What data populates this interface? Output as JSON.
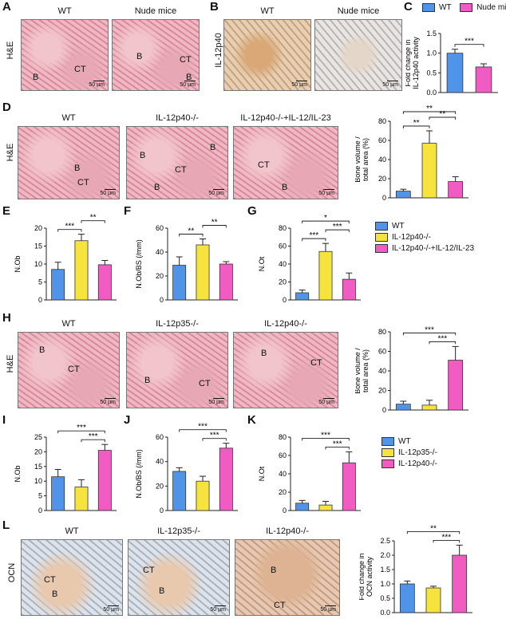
{
  "panels": {
    "A": {
      "label": "A",
      "side": "H&E",
      "titles": [
        "WT",
        "Nude mice"
      ],
      "tags": [
        [
          "B",
          "CT"
        ],
        [
          "B",
          "CT",
          "B"
        ]
      ],
      "scale": "50 µm"
    },
    "B": {
      "label": "B",
      "side": "IL-12p40",
      "titles": [
        "WT",
        "Nude mice"
      ],
      "scale": "50 µm"
    },
    "C": {
      "label": "C"
    },
    "D": {
      "label": "D",
      "side": "H&E",
      "titles": [
        "WT",
        "IL-12p40-/-",
        "IL-12p40-/-+IL-12/IL-23"
      ],
      "tags": [
        [
          "B",
          "CT"
        ],
        [
          "B",
          "B",
          "CT",
          "B"
        ],
        [
          "CT",
          "B"
        ]
      ],
      "scale": "50 µm"
    },
    "E": {
      "label": "E"
    },
    "F": {
      "label": "F"
    },
    "G": {
      "label": "G"
    },
    "H": {
      "label": "H",
      "side": "H&E",
      "titles": [
        "WT",
        "IL-12p35-/-",
        "IL-12p40-/-"
      ],
      "tags": [
        [
          "B",
          "CT"
        ],
        [
          "B",
          "CT"
        ],
        [
          "B",
          "CT"
        ]
      ],
      "scale": "50 µm"
    },
    "I": {
      "label": "I"
    },
    "J": {
      "label": "J"
    },
    "K": {
      "label": "K"
    },
    "L": {
      "label": "L",
      "side": "OCN",
      "titles": [
        "WT",
        "IL-12p35-/-",
        "IL-12p40-/-"
      ],
      "tags": [
        [
          "CT",
          "B"
        ],
        [
          "CT",
          "B"
        ],
        [
          "B",
          "CT"
        ]
      ],
      "scale": "50 µm"
    }
  },
  "legends": {
    "C": [
      {
        "name": "WT",
        "color": "#4f94e8"
      },
      {
        "name": "Nude mice",
        "color": "#f05cc2"
      }
    ],
    "D": [
      {
        "name": "WT",
        "color": "#4f94e8"
      },
      {
        "name": "IL-12p40-/-",
        "color": "#f6e33d"
      },
      {
        "name": "IL-12p40-/-+IL-12/IL-23",
        "color": "#f05cc2"
      }
    ],
    "H": [
      {
        "name": "WT",
        "color": "#4f94e8"
      },
      {
        "name": "IL-12p35-/-",
        "color": "#f6e33d"
      },
      {
        "name": "IL-12p40-/-",
        "color": "#f05cc2"
      }
    ]
  },
  "chart_data": [
    {
      "id": "C",
      "type": "bar",
      "ylabel": "Fold change in IL-12p40 activity",
      "ylim": [
        0,
        1.5
      ],
      "ticks": [
        0,
        0.5,
        1.0,
        1.5
      ],
      "tick_labels": [
        "0.0",
        "0.5",
        "1.0",
        "1.5"
      ],
      "values": [
        1.0,
        0.65
      ],
      "errors": [
        0.1,
        0.08
      ],
      "colors": [
        "#4f94e8",
        "#f05cc2"
      ],
      "sig": [
        {
          "a": 0,
          "b": 1,
          "label": "***"
        }
      ]
    },
    {
      "id": "D",
      "type": "bar",
      "ylabel": "Bone volume / total area (%)",
      "ylim": [
        0,
        80
      ],
      "ticks": [
        0,
        20,
        40,
        60,
        80
      ],
      "tick_labels": [
        "0",
        "20",
        "40",
        "60",
        "80"
      ],
      "values": [
        7,
        57,
        17
      ],
      "errors": [
        2,
        13,
        5
      ],
      "colors": [
        "#4f94e8",
        "#f6e33d",
        "#f05cc2"
      ],
      "sig": [
        {
          "a": 0,
          "b": 1,
          "label": "**"
        },
        {
          "a": 1,
          "b": 2,
          "label": "**"
        },
        {
          "a": 0,
          "b": 2,
          "label": "**"
        }
      ]
    },
    {
      "id": "E",
      "type": "bar",
      "ylabel": "N.Ob",
      "ylim": [
        0,
        20
      ],
      "ticks": [
        0,
        5,
        10,
        15,
        20
      ],
      "tick_labels": [
        "0",
        "5",
        "10",
        "15",
        "20"
      ],
      "values": [
        8.5,
        16.5,
        9.8
      ],
      "errors": [
        2.0,
        1.8,
        1.2
      ],
      "colors": [
        "#4f94e8",
        "#f6e33d",
        "#f05cc2"
      ],
      "sig": [
        {
          "a": 0,
          "b": 1,
          "label": "***"
        },
        {
          "a": 1,
          "b": 2,
          "label": "**"
        }
      ]
    },
    {
      "id": "F",
      "type": "bar",
      "ylabel": "N.Ob/BS (/mm)",
      "ylim": [
        0,
        60
      ],
      "ticks": [
        0,
        20,
        40,
        60
      ],
      "tick_labels": [
        "0",
        "20",
        "40",
        "60"
      ],
      "values": [
        29,
        46,
        30
      ],
      "errors": [
        7,
        5,
        2
      ],
      "colors": [
        "#4f94e8",
        "#f6e33d",
        "#f05cc2"
      ],
      "sig": [
        {
          "a": 0,
          "b": 1,
          "label": "**"
        },
        {
          "a": 1,
          "b": 2,
          "label": "**"
        }
      ]
    },
    {
      "id": "G",
      "type": "bar",
      "ylabel": "N.Ot",
      "ylim": [
        0,
        80
      ],
      "ticks": [
        0,
        20,
        40,
        60,
        80
      ],
      "tick_labels": [
        "0",
        "20",
        "40",
        "60",
        "80"
      ],
      "values": [
        8,
        54,
        23
      ],
      "errors": [
        3,
        9,
        7
      ],
      "colors": [
        "#4f94e8",
        "#f6e33d",
        "#f05cc2"
      ],
      "sig": [
        {
          "a": 0,
          "b": 1,
          "label": "***"
        },
        {
          "a": 1,
          "b": 2,
          "label": "***"
        },
        {
          "a": 0,
          "b": 2,
          "label": "*"
        }
      ]
    },
    {
      "id": "H",
      "type": "bar",
      "ylabel": "Bone volume / total area (%)",
      "ylim": [
        0,
        80
      ],
      "ticks": [
        0,
        20,
        40,
        60,
        80
      ],
      "tick_labels": [
        "0",
        "20",
        "40",
        "60",
        "80"
      ],
      "values": [
        6,
        5,
        51
      ],
      "errors": [
        3,
        5,
        14
      ],
      "colors": [
        "#4f94e8",
        "#f6e33d",
        "#f05cc2"
      ],
      "sig": [
        {
          "a": 1,
          "b": 2,
          "label": "***"
        },
        {
          "a": 0,
          "b": 2,
          "label": "***"
        }
      ]
    },
    {
      "id": "I",
      "type": "bar",
      "ylabel": "N.Ob",
      "ylim": [
        0,
        25
      ],
      "ticks": [
        0,
        5,
        10,
        15,
        20,
        25
      ],
      "tick_labels": [
        "0",
        "5",
        "10",
        "15",
        "20",
        "25"
      ],
      "values": [
        11.5,
        8,
        20.5
      ],
      "errors": [
        2.5,
        2.5,
        2
      ],
      "colors": [
        "#4f94e8",
        "#f6e33d",
        "#f05cc2"
      ],
      "sig": [
        {
          "a": 1,
          "b": 2,
          "label": "***"
        },
        {
          "a": 0,
          "b": 2,
          "label": "***"
        }
      ]
    },
    {
      "id": "J",
      "type": "bar",
      "ylabel": "N.Ob/BS (/mm)",
      "ylim": [
        0,
        60
      ],
      "ticks": [
        0,
        20,
        40,
        60
      ],
      "tick_labels": [
        "0",
        "20",
        "40",
        "60"
      ],
      "values": [
        32,
        24,
        51
      ],
      "errors": [
        3,
        4,
        4
      ],
      "colors": [
        "#4f94e8",
        "#f6e33d",
        "#f05cc2"
      ],
      "sig": [
        {
          "a": 1,
          "b": 2,
          "label": "***"
        },
        {
          "a": 0,
          "b": 2,
          "label": "***"
        }
      ]
    },
    {
      "id": "K",
      "type": "bar",
      "ylabel": "N.Ot",
      "ylim": [
        0,
        80
      ],
      "ticks": [
        0,
        20,
        40,
        60,
        80
      ],
      "tick_labels": [
        "0",
        "20",
        "40",
        "60",
        "80"
      ],
      "values": [
        8,
        6,
        52
      ],
      "errors": [
        3,
        4,
        12
      ],
      "colors": [
        "#4f94e8",
        "#f6e33d",
        "#f05cc2"
      ],
      "sig": [
        {
          "a": 1,
          "b": 2,
          "label": "***"
        },
        {
          "a": 0,
          "b": 2,
          "label": "***"
        }
      ]
    },
    {
      "id": "L",
      "type": "bar",
      "ylabel": "Fold change in OCN activity",
      "ylim": [
        0,
        2.5
      ],
      "ticks": [
        0,
        0.5,
        1.0,
        1.5,
        2.0,
        2.5
      ],
      "tick_labels": [
        "0.0",
        "0.5",
        "1.0",
        "1.5",
        "2.0",
        "2.5"
      ],
      "values": [
        1.0,
        0.86,
        2.0
      ],
      "errors": [
        0.1,
        0.06,
        0.35
      ],
      "colors": [
        "#4f94e8",
        "#f6e33d",
        "#f05cc2"
      ],
      "sig": [
        {
          "a": 1,
          "b": 2,
          "label": "***"
        },
        {
          "a": 0,
          "b": 2,
          "label": "**"
        }
      ]
    }
  ]
}
